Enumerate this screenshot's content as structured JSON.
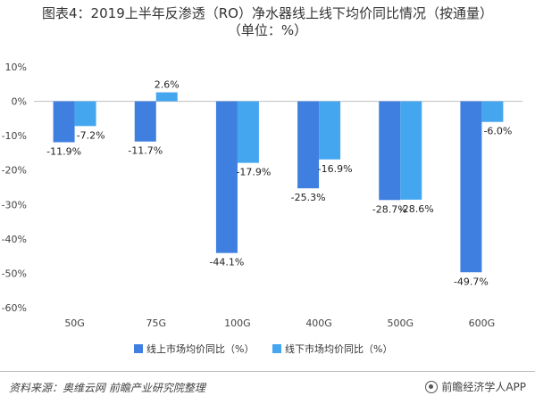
{
  "title_line1": "图表4：2019上半年反渗透（RO）净水器线上线下均价同比情况（按通量）",
  "title_line2": "（单位：%）",
  "source_text": "资料来源：奥维云网 前瞻产业研究院整理",
  "brand_text": "前瞻经济学人APP",
  "chart_data": {
    "type": "bar",
    "categories": [
      "50G",
      "75G",
      "100G",
      "400G",
      "500G",
      "600G"
    ],
    "series": [
      {
        "name": "线上市场均价同比（%）",
        "values": [
          -11.9,
          -11.7,
          -44.1,
          -25.3,
          -28.7,
          -49.7
        ],
        "color": "#3f7fe0"
      },
      {
        "name": "线下市场均价同比（%）",
        "values": [
          -7.2,
          2.6,
          -17.9,
          -16.9,
          -28.6,
          -6.0
        ],
        "color": "#45a6f0"
      }
    ],
    "ylim": [
      -60,
      10
    ],
    "yticks": [
      10,
      0,
      -10,
      -20,
      -30,
      -40,
      -50,
      -60
    ],
    "ytick_labels": [
      "10%",
      "0%",
      "-10%",
      "-20%",
      "-30%",
      "-40%",
      "-50%",
      "-60%"
    ],
    "data_labels": [
      [
        "-11.9%",
        "-11.7%",
        "-44.1%",
        "-25.3%",
        "-28.7%",
        "-49.7%"
      ],
      [
        "-7.2%",
        "2.6%",
        "-17.9%",
        "-16.9%",
        "-28.6%",
        "-6.0%"
      ]
    ],
    "legend_position": "bottom",
    "grid": false
  }
}
